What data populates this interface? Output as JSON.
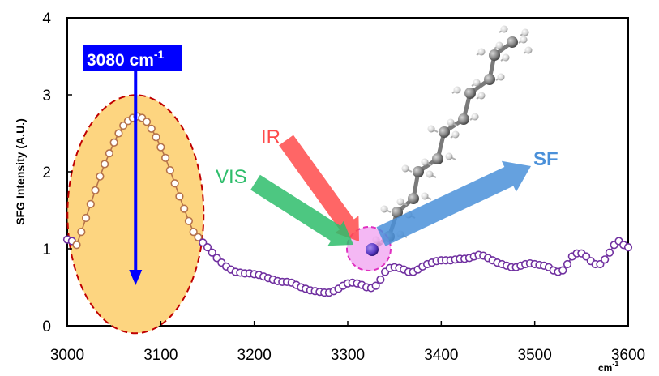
{
  "chart_data": {
    "type": "line",
    "title": "",
    "xlabel": "cm-1",
    "xlabel_base": "cm",
    "xlabel_sup": "-1",
    "ylabel": "SFG  Intensity (A.U.)",
    "xlim": [
      3000,
      3600
    ],
    "ylim": [
      0,
      4
    ],
    "x_ticks": [
      "3000",
      "3100",
      "3200",
      "3300",
      "3400",
      "3500",
      "3600"
    ],
    "y_ticks": [
      "0",
      "1",
      "2",
      "3",
      "4"
    ],
    "grid": false,
    "series": [
      {
        "points": [
          [
            3000,
            1.12
          ],
          [
            3005,
            1.1
          ],
          [
            3010,
            1.05
          ],
          [
            3015,
            1.22
          ],
          [
            3020,
            1.4
          ],
          [
            3025,
            1.58
          ],
          [
            3030,
            1.76
          ],
          [
            3035,
            1.94
          ],
          [
            3040,
            2.1
          ],
          [
            3045,
            2.24
          ],
          [
            3050,
            2.38
          ],
          [
            3055,
            2.5
          ],
          [
            3060,
            2.6
          ],
          [
            3065,
            2.66
          ],
          [
            3070,
            2.7
          ],
          [
            3075,
            2.72
          ],
          [
            3080,
            2.7
          ],
          [
            3085,
            2.65
          ],
          [
            3090,
            2.56
          ],
          [
            3095,
            2.45
          ],
          [
            3100,
            2.32
          ],
          [
            3105,
            2.18
          ],
          [
            3110,
            2.02
          ],
          [
            3115,
            1.85
          ],
          [
            3120,
            1.68
          ],
          [
            3125,
            1.52
          ],
          [
            3130,
            1.36
          ],
          [
            3135,
            1.22
          ],
          [
            3140,
            1.15
          ],
          [
            3145,
            1.08
          ],
          [
            3150,
            1.02
          ],
          [
            3155,
            0.95
          ],
          [
            3160,
            0.88
          ],
          [
            3165,
            0.82
          ],
          [
            3170,
            0.77
          ],
          [
            3175,
            0.73
          ],
          [
            3180,
            0.7
          ],
          [
            3185,
            0.69
          ],
          [
            3190,
            0.68
          ],
          [
            3195,
            0.68
          ],
          [
            3200,
            0.67
          ],
          [
            3205,
            0.66
          ],
          [
            3210,
            0.64
          ],
          [
            3215,
            0.62
          ],
          [
            3220,
            0.6
          ],
          [
            3225,
            0.58
          ],
          [
            3230,
            0.57
          ],
          [
            3235,
            0.57
          ],
          [
            3240,
            0.56
          ],
          [
            3245,
            0.53
          ],
          [
            3250,
            0.5
          ],
          [
            3255,
            0.48
          ],
          [
            3260,
            0.46
          ],
          [
            3265,
            0.45
          ],
          [
            3270,
            0.44
          ],
          [
            3275,
            0.43
          ],
          [
            3280,
            0.43
          ],
          [
            3285,
            0.45
          ],
          [
            3290,
            0.48
          ],
          [
            3295,
            0.52
          ],
          [
            3300,
            0.55
          ],
          [
            3305,
            0.56
          ],
          [
            3310,
            0.55
          ],
          [
            3315,
            0.53
          ],
          [
            3320,
            0.5
          ],
          [
            3325,
            0.49
          ],
          [
            3330,
            0.52
          ],
          [
            3335,
            0.6
          ],
          [
            3340,
            0.7
          ],
          [
            3345,
            0.75
          ],
          [
            3350,
            0.76
          ],
          [
            3355,
            0.75
          ],
          [
            3360,
            0.73
          ],
          [
            3365,
            0.7
          ],
          [
            3370,
            0.7
          ],
          [
            3375,
            0.73
          ],
          [
            3380,
            0.77
          ],
          [
            3385,
            0.8
          ],
          [
            3390,
            0.82
          ],
          [
            3395,
            0.84
          ],
          [
            3400,
            0.85
          ],
          [
            3405,
            0.85
          ],
          [
            3410,
            0.85
          ],
          [
            3415,
            0.86
          ],
          [
            3420,
            0.87
          ],
          [
            3425,
            0.87
          ],
          [
            3430,
            0.88
          ],
          [
            3435,
            0.9
          ],
          [
            3440,
            0.92
          ],
          [
            3445,
            0.91
          ],
          [
            3450,
            0.88
          ],
          [
            3455,
            0.85
          ],
          [
            3460,
            0.82
          ],
          [
            3465,
            0.8
          ],
          [
            3470,
            0.78
          ],
          [
            3475,
            0.76
          ],
          [
            3480,
            0.76
          ],
          [
            3485,
            0.78
          ],
          [
            3490,
            0.8
          ],
          [
            3495,
            0.81
          ],
          [
            3500,
            0.8
          ],
          [
            3505,
            0.79
          ],
          [
            3510,
            0.78
          ],
          [
            3515,
            0.76
          ],
          [
            3520,
            0.72
          ],
          [
            3525,
            0.7
          ],
          [
            3530,
            0.72
          ],
          [
            3535,
            0.8
          ],
          [
            3540,
            0.9
          ],
          [
            3545,
            0.94
          ],
          [
            3550,
            0.94
          ],
          [
            3555,
            0.9
          ],
          [
            3560,
            0.84
          ],
          [
            3565,
            0.8
          ],
          [
            3570,
            0.8
          ],
          [
            3575,
            0.86
          ],
          [
            3580,
            0.95
          ],
          [
            3585,
            1.05
          ],
          [
            3590,
            1.1
          ],
          [
            3595,
            1.05
          ],
          [
            3600,
            1.02
          ]
        ]
      }
    ],
    "highlight_color": "#b5724a",
    "line_color": "#7030a0",
    "annotations": {
      "peak_label": "3080 cm-1",
      "peak_label_base": "3080 cm",
      "peak_label_sup": "-1",
      "peak_x": 3080,
      "ir_label": "IR",
      "vis_label": "VIS",
      "sf_label": "SF",
      "ir_color": "#ff4b4b",
      "vis_color": "#2ebd6b",
      "sf_color": "#4a90d9",
      "ellipse_fill": "#fdd580",
      "ellipse_stroke": "#c00000",
      "callout_bg": "#0000ff"
    }
  }
}
